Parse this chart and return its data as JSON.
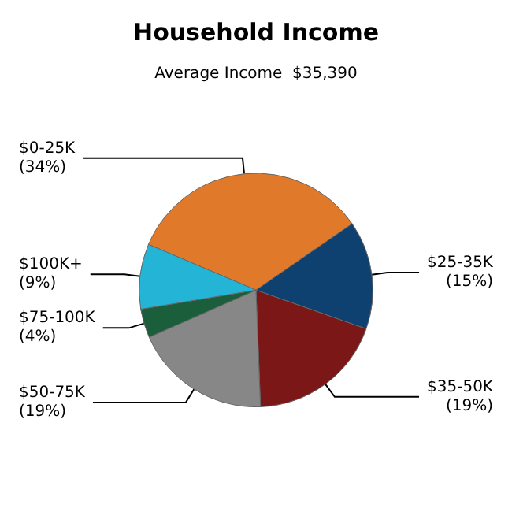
{
  "chart_data": {
    "type": "pie",
    "title": "Household Income",
    "subtitle": "Average Income  $35,390",
    "categories": [
      "$0-25K",
      "$25-35K",
      "$35-50K",
      "$50-75K",
      "$75-100K",
      "$100K+"
    ],
    "values": [
      34,
      15,
      19,
      19,
      4,
      9
    ],
    "value_labels": [
      "(34%)",
      "(15%)",
      "(19%)",
      "(19%)",
      "(4%)",
      "(9%)"
    ],
    "colors": [
      "#e07a2a",
      "#0f4170",
      "#7c1717",
      "#878787",
      "#1a5e3c",
      "#24b5d6"
    ],
    "legend": false
  }
}
